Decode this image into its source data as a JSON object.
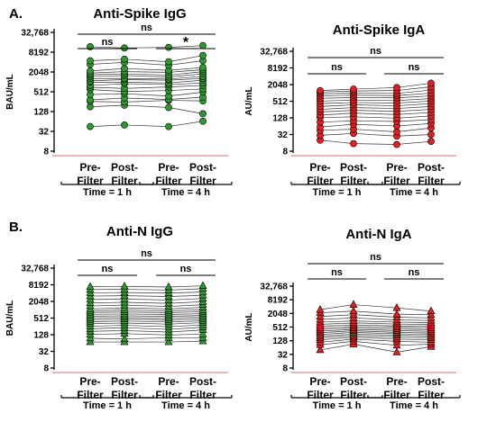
{
  "section_labels": [
    "A.",
    "B."
  ],
  "chart_data": [
    {
      "type": "scatter",
      "title": "Anti-Spike IgG",
      "ylabel": "BAU/mL",
      "y_scale": "log2",
      "yticks": [
        "8",
        "32",
        "128",
        "512",
        "2048",
        "8192",
        "32,768"
      ],
      "ylim": [
        8,
        32768
      ],
      "categories": [
        "Pre-Filter",
        "Post-Filter",
        "Pre-Filter",
        "Post-Filter"
      ],
      "groups": [
        "Time = 1 h",
        "Time = 4 h"
      ],
      "marker": "circle",
      "color": "#2e9a2e",
      "significance": [
        {
          "label": "ns",
          "from": 0,
          "to": 1
        },
        {
          "label": "*",
          "from": 2,
          "to": 3
        },
        {
          "label": "ns",
          "from": 0,
          "to": 3
        }
      ],
      "values": [
        [
          45,
          180,
          260,
          290,
          420,
          600,
          700,
          800,
          1000,
          1100,
          1300,
          1500,
          1700,
          1900,
          2200,
          3500,
          4500,
          12000
        ],
        [
          50,
          200,
          250,
          330,
          450,
          520,
          650,
          900,
          1000,
          1200,
          1300,
          1600,
          1800,
          2100,
          2600,
          4000,
          5000,
          11000
        ],
        [
          45,
          170,
          280,
          300,
          380,
          560,
          720,
          850,
          950,
          1150,
          1250,
          1450,
          1650,
          2000,
          2300,
          3300,
          4200,
          11500
        ],
        [
          65,
          110,
          270,
          350,
          500,
          620,
          800,
          950,
          1150,
          1300,
          1500,
          1800,
          2100,
          2400,
          2800,
          4500,
          6500,
          13000
        ]
      ]
    },
    {
      "type": "scatter",
      "title": "Anti-Spike IgA",
      "ylabel": "AU/mL",
      "y_scale": "log2",
      "yticks": [
        "8",
        "32",
        "128",
        "512",
        "2048",
        "8192",
        "32,768"
      ],
      "ylim": [
        8,
        32768
      ],
      "categories": [
        "Pre-Filter",
        "Post-Filter",
        "Pre-Filter",
        "Post-Filter"
      ],
      "groups": [
        "Time = 1 h",
        "Time = 4 h"
      ],
      "marker": "circle",
      "color": "#e41e1e",
      "significance": [
        {
          "label": "ns",
          "from": 0,
          "to": 1
        },
        {
          "label": "ns",
          "from": 2,
          "to": 3
        },
        {
          "label": "ns",
          "from": 0,
          "to": 3
        }
      ],
      "values": [
        [
          20,
          30,
          45,
          60,
          90,
          130,
          160,
          210,
          260,
          330,
          420,
          520,
          650,
          800,
          950,
          1100,
          1250
        ],
        [
          15,
          35,
          50,
          75,
          100,
          140,
          190,
          240,
          300,
          380,
          460,
          560,
          700,
          850,
          1000,
          1200,
          1400
        ],
        [
          14,
          28,
          40,
          65,
          95,
          125,
          170,
          220,
          280,
          350,
          440,
          540,
          680,
          820,
          980,
          1250,
          1600
        ],
        [
          18,
          32,
          55,
          80,
          110,
          150,
          200,
          260,
          330,
          420,
          520,
          640,
          800,
          1000,
          1300,
          1700,
          2300
        ]
      ]
    },
    {
      "type": "scatter",
      "title": "Anti-N IgG",
      "ylabel": "BAU/mL",
      "y_scale": "log2",
      "yticks": [
        "8",
        "32",
        "128",
        "512",
        "2048",
        "8192",
        "32,768"
      ],
      "ylim": [
        8,
        32768
      ],
      "categories": [
        "Pre-Filter",
        "Post-Filter",
        "Pre-Filter",
        "Post-Filter"
      ],
      "groups": [
        "Time = 1 h",
        "Time = 4 h"
      ],
      "marker": "triangle",
      "color": "#2e9a2e",
      "significance": [
        {
          "label": "ns",
          "from": 0,
          "to": 1
        },
        {
          "label": "ns",
          "from": 2,
          "to": 3
        },
        {
          "label": "ns",
          "from": 0,
          "to": 3
        }
      ],
      "values": [
        [
          70,
          95,
          130,
          170,
          210,
          260,
          320,
          380,
          450,
          520,
          600,
          700,
          820,
          950,
          1100,
          1400,
          1800,
          2400,
          3200,
          4200,
          5500,
          7000
        ],
        [
          70,
          90,
          140,
          180,
          230,
          280,
          340,
          400,
          470,
          540,
          620,
          720,
          850,
          1000,
          1200,
          1500,
          1900,
          2500,
          3300,
          4300,
          5600,
          7200
        ],
        [
          70,
          100,
          125,
          160,
          200,
          250,
          310,
          370,
          440,
          510,
          590,
          690,
          810,
          940,
          1100,
          1350,
          1750,
          2300,
          3100,
          4100,
          5300,
          6800
        ],
        [
          75,
          100,
          135,
          190,
          240,
          290,
          350,
          410,
          480,
          560,
          640,
          740,
          870,
          1020,
          1250,
          1550,
          2000,
          2600,
          3400,
          4500,
          5900,
          7500
        ]
      ]
    },
    {
      "type": "scatter",
      "title": "Anti-N IgA",
      "ylabel": "AU/mL",
      "y_scale": "log2",
      "yticks": [
        "8",
        "32",
        "128",
        "512",
        "2048",
        "8192",
        "32,768"
      ],
      "ylim": [
        8,
        32768
      ],
      "categories": [
        "Pre-Filter",
        "Post-Filter",
        "Pre-Filter",
        "Post-Filter"
      ],
      "groups": [
        "Time = 1 h",
        "Time = 4 h"
      ],
      "marker": "triangle",
      "color": "#e41e1e",
      "significance": [
        {
          "label": "ns",
          "from": 0,
          "to": 1
        },
        {
          "label": "ns",
          "from": 2,
          "to": 3
        },
        {
          "label": "ns",
          "from": 0,
          "to": 3
        }
      ],
      "values": [
        [
          50,
          85,
          110,
          140,
          170,
          200,
          240,
          290,
          340,
          400,
          470,
          560,
          680,
          850,
          1100,
          1500,
          2200,
          3000
        ],
        [
          90,
          120,
          150,
          180,
          210,
          250,
          300,
          350,
          400,
          460,
          540,
          640,
          780,
          950,
          1300,
          1800,
          2600,
          5000
        ],
        [
          40,
          80,
          120,
          150,
          180,
          220,
          260,
          300,
          360,
          420,
          500,
          580,
          700,
          850,
          1050,
          1400,
          1900,
          3600
        ],
        [
          70,
          90,
          110,
          140,
          170,
          200,
          240,
          280,
          330,
          390,
          460,
          550,
          660,
          800,
          1000,
          1300,
          1800,
          2600
        ]
      ]
    }
  ]
}
